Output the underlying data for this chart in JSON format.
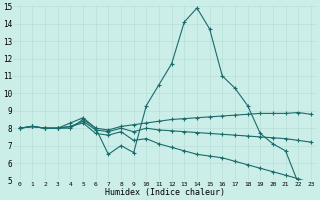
{
  "xlabel": "Humidex (Indice chaleur)",
  "bg_color": "#cceee8",
  "line_color": "#1a6b6b",
  "grid_color": "#b8ddd8",
  "xlim": [
    -0.5,
    23.5
  ],
  "ylim": [
    5,
    15
  ],
  "yticks": [
    5,
    6,
    7,
    8,
    9,
    10,
    11,
    12,
    13,
    14,
    15
  ],
  "xticks": [
    0,
    1,
    2,
    3,
    4,
    5,
    6,
    7,
    8,
    9,
    10,
    11,
    12,
    13,
    14,
    15,
    16,
    17,
    18,
    19,
    20,
    21,
    22,
    23
  ],
  "lines": [
    {
      "x": [
        0,
        1,
        2,
        3,
        4,
        5,
        6,
        7,
        8,
        9,
        10,
        11,
        12,
        13,
        14,
        15,
        16,
        17,
        18,
        19,
        20,
        21,
        22,
        23
      ],
      "y": [
        8.0,
        8.1,
        8.0,
        8.0,
        8.0,
        8.5,
        8.0,
        6.5,
        7.0,
        6.6,
        9.3,
        10.5,
        11.7,
        14.1,
        14.9,
        13.7,
        11.0,
        10.3,
        9.3,
        7.7,
        7.1,
        6.7,
        4.85,
        4.85
      ]
    },
    {
      "x": [
        0,
        1,
        2,
        3,
        4,
        5,
        6,
        7,
        8,
        9,
        10,
        11,
        12,
        13,
        14,
        15,
        16,
        17,
        18,
        19,
        20,
        21,
        22,
        23
      ],
      "y": [
        8.0,
        8.1,
        8.0,
        8.0,
        8.3,
        8.6,
        8.0,
        7.9,
        8.1,
        8.2,
        8.3,
        8.4,
        8.5,
        8.55,
        8.6,
        8.65,
        8.7,
        8.75,
        8.8,
        8.85,
        8.85,
        8.85,
        8.9,
        8.8
      ]
    },
    {
      "x": [
        0,
        1,
        2,
        3,
        4,
        5,
        6,
        7,
        8,
        9,
        10,
        11,
        12,
        13,
        14,
        15,
        16,
        17,
        18,
        19,
        20,
        21,
        22,
        23
      ],
      "y": [
        8.0,
        8.1,
        8.0,
        8.0,
        8.1,
        8.4,
        7.9,
        7.8,
        8.0,
        7.8,
        8.0,
        7.9,
        7.85,
        7.8,
        7.75,
        7.7,
        7.65,
        7.6,
        7.55,
        7.5,
        7.45,
        7.4,
        7.3,
        7.2
      ]
    },
    {
      "x": [
        0,
        1,
        2,
        3,
        4,
        5,
        6,
        7,
        8,
        9,
        10,
        11,
        12,
        13,
        14,
        15,
        16,
        17,
        18,
        19,
        20,
        21,
        22,
        23
      ],
      "y": [
        8.0,
        8.1,
        8.0,
        8.0,
        8.1,
        8.3,
        7.7,
        7.6,
        7.8,
        7.3,
        7.4,
        7.1,
        6.9,
        6.7,
        6.5,
        6.4,
        6.3,
        6.1,
        5.9,
        5.7,
        5.5,
        5.3,
        5.1,
        4.85
      ]
    }
  ]
}
